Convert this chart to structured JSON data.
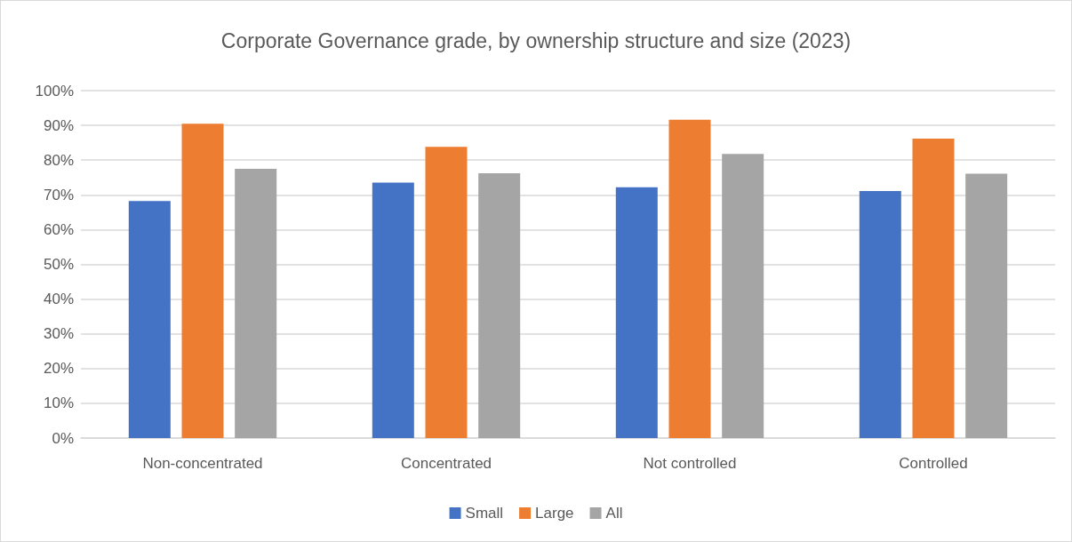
{
  "chart_data": {
    "type": "bar",
    "title": "Corporate Governance grade, by ownership structure and size (2023)",
    "categories": [
      "Non-concentrated",
      "Concentrated",
      "Not controlled",
      "Controlled"
    ],
    "series": [
      {
        "name": "Small",
        "color": "#4472c4",
        "values": [
          68.2,
          73.5,
          72.2,
          71.1
        ]
      },
      {
        "name": "Large",
        "color": "#ed7d31",
        "values": [
          90.5,
          83.8,
          91.6,
          86.2
        ]
      },
      {
        "name": "All",
        "color": "#a5a5a5",
        "values": [
          77.5,
          76.2,
          81.8,
          76.1
        ]
      }
    ],
    "ylim": [
      0,
      100
    ],
    "yticks": [
      {
        "value": 0,
        "label": "0%"
      },
      {
        "value": 10,
        "label": "10%"
      },
      {
        "value": 20,
        "label": "20%"
      },
      {
        "value": 30,
        "label": "30%"
      },
      {
        "value": 40,
        "label": "40%"
      },
      {
        "value": 50,
        "label": "50%"
      },
      {
        "value": 60,
        "label": "60%"
      },
      {
        "value": 70,
        "label": "70%"
      },
      {
        "value": 80,
        "label": "80%"
      },
      {
        "value": 90,
        "label": "90%"
      },
      {
        "value": 100,
        "label": "100%"
      }
    ],
    "grid": "y",
    "legend": "bottom"
  }
}
